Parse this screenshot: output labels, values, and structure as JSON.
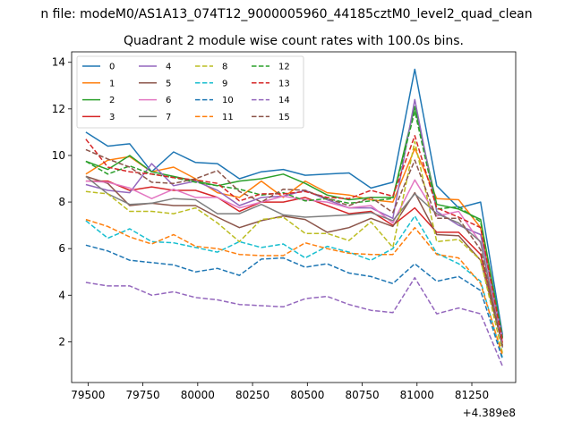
{
  "chart_data": {
    "type": "line",
    "title_top": "n file: modeM0/AS1A13_074T12_9000005960_44185cztM0_level2_quad_clean",
    "title": "Quadrant 2 module wise count rates with 100.0s bins.",
    "xlabel": "",
    "ylabel": "",
    "x_offset_label": "+4.389e8",
    "xlim": [
      79425,
      81450
    ],
    "ylim": [
      0.25,
      14.45
    ],
    "xticks": [
      79500,
      79750,
      80000,
      80250,
      80500,
      80750,
      81000,
      81250
    ],
    "yticks": [
      2,
      4,
      6,
      8,
      10,
      12,
      14
    ],
    "grid": false,
    "legend": "top-left, 6 columns",
    "x": [
      79490,
      79590,
      79690,
      79790,
      79890,
      79990,
      80090,
      80190,
      80290,
      80390,
      80490,
      80590,
      80690,
      80790,
      80890,
      80990,
      81090,
      81190,
      81290,
      81390
    ],
    "series": [
      {
        "name": "0",
        "color": "#1f77b4",
        "dash": "solid",
        "values": [
          11.0,
          10.4,
          10.5,
          9.3,
          10.15,
          9.7,
          9.65,
          9.0,
          9.3,
          9.4,
          9.15,
          9.2,
          9.25,
          8.6,
          8.85,
          13.7,
          8.7,
          7.75,
          8.0,
          2.3
        ]
      },
      {
        "name": "1",
        "color": "#ff7f0e",
        "dash": "solid",
        "values": [
          9.2,
          9.8,
          9.95,
          9.3,
          9.5,
          9.0,
          8.4,
          8.2,
          8.9,
          8.2,
          8.9,
          8.4,
          8.3,
          8.1,
          8.0,
          10.3,
          8.15,
          8.1,
          6.9,
          1.95
        ]
      },
      {
        "name": "2",
        "color": "#2ca02c",
        "dash": "solid",
        "values": [
          9.75,
          9.4,
          10.0,
          9.3,
          9.1,
          8.9,
          8.7,
          8.9,
          9.0,
          9.2,
          8.8,
          8.3,
          8.1,
          8.2,
          8.2,
          12.1,
          7.9,
          7.7,
          7.25,
          2.2
        ]
      },
      {
        "name": "3",
        "color": "#d62728",
        "dash": "solid",
        "values": [
          8.9,
          8.9,
          8.5,
          8.65,
          8.5,
          8.5,
          8.2,
          7.6,
          8.0,
          8.0,
          8.2,
          7.85,
          7.5,
          7.6,
          7.0,
          7.75,
          6.7,
          6.7,
          5.75,
          2.0
        ]
      },
      {
        "name": "4",
        "color": "#9467bd",
        "dash": "solid",
        "values": [
          8.75,
          8.5,
          8.4,
          9.65,
          8.7,
          8.9,
          8.5,
          7.85,
          8.2,
          8.25,
          8.5,
          8.1,
          7.75,
          7.75,
          7.3,
          12.4,
          7.6,
          7.0,
          6.6,
          2.2
        ]
      },
      {
        "name": "5",
        "color": "#8c564b",
        "dash": "solid",
        "values": [
          9.1,
          8.8,
          7.85,
          7.95,
          7.85,
          7.85,
          7.35,
          6.9,
          7.2,
          7.4,
          7.25,
          6.7,
          6.9,
          7.3,
          6.95,
          8.4,
          6.6,
          6.55,
          5.5,
          1.85
        ]
      },
      {
        "name": "6",
        "color": "#e377c2",
        "dash": "solid",
        "values": [
          8.9,
          8.85,
          8.6,
          8.15,
          8.55,
          8.2,
          8.2,
          7.75,
          8.0,
          8.25,
          8.1,
          8.0,
          7.75,
          7.85,
          7.1,
          8.95,
          7.4,
          7.6,
          6.25,
          2.0
        ]
      },
      {
        "name": "7",
        "color": "#7f7f7f",
        "dash": "solid",
        "values": [
          9.1,
          8.35,
          7.9,
          7.95,
          8.15,
          8.1,
          7.5,
          7.5,
          7.9,
          7.45,
          7.35,
          7.4,
          7.45,
          7.55,
          7.2,
          8.35,
          7.5,
          7.1,
          6.3,
          1.75
        ]
      },
      {
        "name": "8",
        "color": "#bcbd22",
        "dash": "dashed",
        "values": [
          8.45,
          8.35,
          7.6,
          7.6,
          7.5,
          7.75,
          7.1,
          6.3,
          7.25,
          7.35,
          6.65,
          6.65,
          6.35,
          7.15,
          6.05,
          10.6,
          6.3,
          6.4,
          5.5,
          1.5
        ]
      },
      {
        "name": "9",
        "color": "#17becf",
        "dash": "dashed",
        "values": [
          7.2,
          6.45,
          6.85,
          6.3,
          6.25,
          6.05,
          5.85,
          6.3,
          6.05,
          6.2,
          5.6,
          6.1,
          5.85,
          5.5,
          6.0,
          7.4,
          5.8,
          5.35,
          4.6,
          1.3
        ]
      },
      {
        "name": "10",
        "color": "#1f77b4",
        "dash": "dashed",
        "values": [
          6.15,
          5.9,
          5.5,
          5.4,
          5.3,
          5.0,
          5.15,
          4.85,
          5.55,
          5.6,
          5.2,
          5.35,
          4.95,
          4.8,
          4.5,
          5.35,
          4.6,
          4.8,
          4.2,
          1.25
        ]
      },
      {
        "name": "11",
        "color": "#ff7f0e",
        "dash": "dashed",
        "values": [
          7.25,
          6.95,
          6.5,
          6.2,
          6.6,
          6.1,
          6.0,
          5.75,
          5.7,
          5.7,
          6.25,
          6.0,
          5.8,
          5.75,
          5.75,
          6.9,
          5.75,
          5.6,
          4.5,
          1.4
        ]
      },
      {
        "name": "12",
        "color": "#2ca02c",
        "dash": "dashed",
        "values": [
          9.75,
          9.2,
          9.55,
          9.2,
          9.05,
          8.85,
          8.7,
          8.55,
          8.3,
          8.4,
          8.05,
          8.15,
          7.95,
          8.05,
          8.15,
          11.9,
          7.7,
          7.8,
          7.15,
          2.15
        ]
      },
      {
        "name": "13",
        "color": "#d62728",
        "dash": "dashed",
        "values": [
          10.7,
          9.5,
          9.3,
          9.2,
          9.05,
          8.95,
          8.8,
          8.05,
          8.35,
          8.35,
          8.45,
          8.2,
          8.15,
          8.5,
          8.25,
          10.85,
          7.75,
          7.35,
          6.9,
          2.0
        ]
      },
      {
        "name": "14",
        "color": "#9467bd",
        "dash": "dashed",
        "values": [
          4.55,
          4.4,
          4.4,
          4.0,
          4.15,
          3.9,
          3.8,
          3.6,
          3.55,
          3.5,
          3.85,
          3.95,
          3.6,
          3.35,
          3.25,
          4.75,
          3.2,
          3.45,
          3.2,
          0.95
        ]
      },
      {
        "name": "15",
        "color": "#8c564b",
        "dash": "dashed",
        "values": [
          10.25,
          9.85,
          9.5,
          8.85,
          8.8,
          9.0,
          9.35,
          8.45,
          8.0,
          8.55,
          8.5,
          8.15,
          7.85,
          8.2,
          7.55,
          9.8,
          7.3,
          7.3,
          5.95,
          1.8
        ]
      }
    ]
  }
}
